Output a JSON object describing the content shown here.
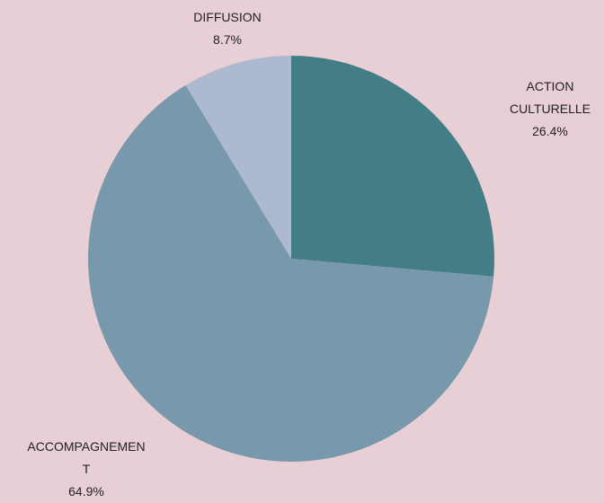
{
  "chart_data": {
    "type": "pie",
    "categories": [
      "ACTION CULTURELLE",
      "ACCOMPAGNEMENT",
      "DIFFUSION"
    ],
    "values": [
      26.4,
      64.9,
      8.7
    ],
    "value_labels": [
      "26.4%",
      "64.9%",
      "8.7%"
    ],
    "colors": [
      "#437e87",
      "#7899ab",
      "#adb9cf"
    ]
  }
}
